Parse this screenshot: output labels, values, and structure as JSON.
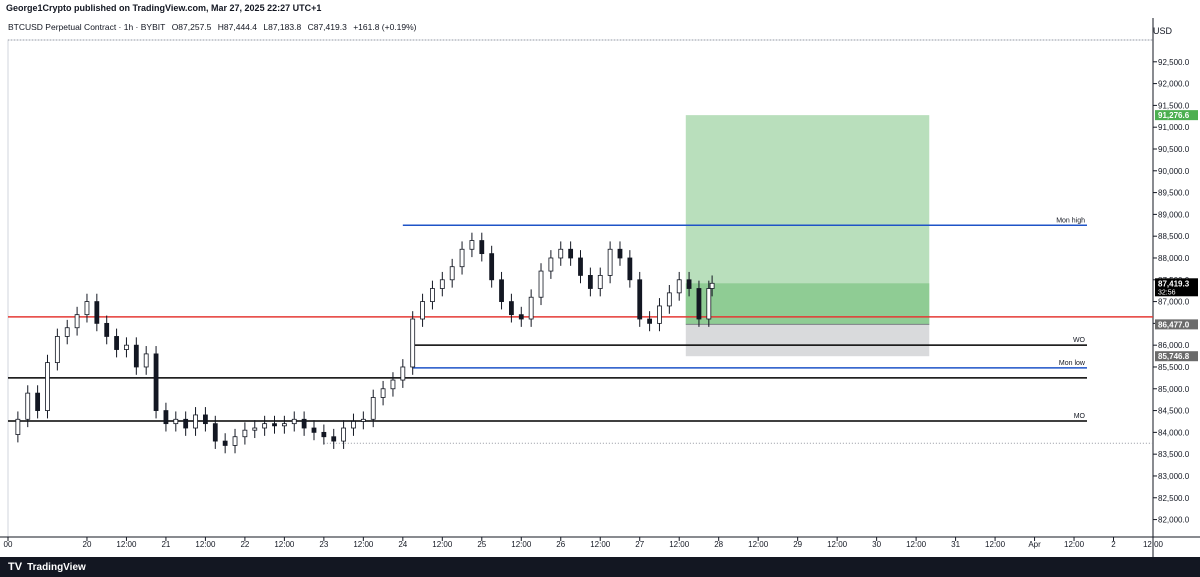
{
  "publish_note": "George1Crypto published on TradingView.com, Mar 27, 2025 22:27 UTC+1",
  "currency": "USD",
  "legend": {
    "symbol": "BTCUSD Perpetual Contract · 1h · BYBIT",
    "open": "O87,257.5",
    "high": "H87,444.4",
    "low": "L87,183.8",
    "close": "C87,419.3",
    "change": "+161.8 (+0.19%)"
  },
  "brand": "TradingView",
  "chart_data": {
    "type": "candlestick",
    "title": "",
    "xlabel": "",
    "ylabel": "",
    "ylim": [
      81600,
      93000
    ],
    "y_ticks": [
      82000,
      82500,
      83000,
      83500,
      84000,
      84500,
      85000,
      85500,
      86000,
      86500,
      87000,
      87500,
      88000,
      88500,
      89000,
      89500,
      90000,
      90500,
      91000,
      91500,
      92000,
      92500
    ],
    "y_tick_labels": [
      "82,000.0",
      "82,500.0",
      "83,000.0",
      "83,500.0",
      "84,000.0",
      "84,500.0",
      "85,000.0",
      "85,500.0",
      "86,000.0",
      "86,500.0",
      "87,000.0",
      "87,500.0",
      "88,000.0",
      "88,500.0",
      "89,000.0",
      "89,500.0",
      "90,000.0",
      "90,500.0",
      "91,000.0",
      "91,500.0",
      "92,000.0",
      "92,500.0"
    ],
    "x_start": "2025-03-19T00:00",
    "x_end": "2025-04-02T12:00",
    "x_ticks": [
      {
        "t": "2025-03-19T00:00",
        "label": "00"
      },
      {
        "t": "2025-03-20T00:00",
        "label": "20"
      },
      {
        "t": "2025-03-20T12:00",
        "label": "12:00"
      },
      {
        "t": "2025-03-21T00:00",
        "label": "21"
      },
      {
        "t": "2025-03-21T12:00",
        "label": "12:00"
      },
      {
        "t": "2025-03-22T00:00",
        "label": "22"
      },
      {
        "t": "2025-03-22T12:00",
        "label": "12:00"
      },
      {
        "t": "2025-03-23T00:00",
        "label": "23"
      },
      {
        "t": "2025-03-23T12:00",
        "label": "12:00"
      },
      {
        "t": "2025-03-24T00:00",
        "label": "24"
      },
      {
        "t": "2025-03-24T12:00",
        "label": "12:00"
      },
      {
        "t": "2025-03-25T00:00",
        "label": "25"
      },
      {
        "t": "2025-03-25T12:00",
        "label": "12:00"
      },
      {
        "t": "2025-03-26T00:00",
        "label": "26"
      },
      {
        "t": "2025-03-26T12:00",
        "label": "12:00"
      },
      {
        "t": "2025-03-27T00:00",
        "label": "27"
      },
      {
        "t": "2025-03-27T12:00",
        "label": "12:00"
      },
      {
        "t": "2025-03-28T00:00",
        "label": "28"
      },
      {
        "t": "2025-03-28T12:00",
        "label": "12:00"
      },
      {
        "t": "2025-03-29T00:00",
        "label": "29"
      },
      {
        "t": "2025-03-29T12:00",
        "label": "12:00"
      },
      {
        "t": "2025-03-30T00:00",
        "label": "30"
      },
      {
        "t": "2025-03-30T12:00",
        "label": "12:00"
      },
      {
        "t": "2025-03-31T00:00",
        "label": "31"
      },
      {
        "t": "2025-03-31T12:00",
        "label": "12:00"
      },
      {
        "t": "2025-04-01T00:00",
        "label": "Apr"
      },
      {
        "t": "2025-04-01T12:00",
        "label": "12:00"
      },
      {
        "t": "2025-04-02T00:00",
        "label": "2"
      },
      {
        "t": "2025-04-02T12:00",
        "label": "12:00"
      }
    ],
    "series": [
      {
        "t": "2025-03-19T00:00",
        "c": 83950
      },
      {
        "t": "2025-03-19T03:00",
        "c": 84300
      },
      {
        "t": "2025-03-19T06:00",
        "c": 84900
      },
      {
        "t": "2025-03-19T09:00",
        "c": 84500
      },
      {
        "t": "2025-03-19T12:00",
        "c": 85600
      },
      {
        "t": "2025-03-19T15:00",
        "c": 86200
      },
      {
        "t": "2025-03-19T18:00",
        "c": 86400
      },
      {
        "t": "2025-03-19T21:00",
        "c": 86700
      },
      {
        "t": "2025-03-20T00:00",
        "c": 87000
      },
      {
        "t": "2025-03-20T03:00",
        "c": 86500
      },
      {
        "t": "2025-03-20T06:00",
        "c": 86200
      },
      {
        "t": "2025-03-20T09:00",
        "c": 85900
      },
      {
        "t": "2025-03-20T12:00",
        "c": 86000
      },
      {
        "t": "2025-03-20T15:00",
        "c": 85500
      },
      {
        "t": "2025-03-20T18:00",
        "c": 85800
      },
      {
        "t": "2025-03-20T21:00",
        "c": 84500
      },
      {
        "t": "2025-03-21T00:00",
        "c": 84200
      },
      {
        "t": "2025-03-21T03:00",
        "c": 84300
      },
      {
        "t": "2025-03-21T06:00",
        "c": 84100
      },
      {
        "t": "2025-03-21T09:00",
        "c": 84400
      },
      {
        "t": "2025-03-21T12:00",
        "c": 84200
      },
      {
        "t": "2025-03-21T15:00",
        "c": 83800
      },
      {
        "t": "2025-03-21T18:00",
        "c": 83700
      },
      {
        "t": "2025-03-21T21:00",
        "c": 83900
      },
      {
        "t": "2025-03-22T00:00",
        "c": 84050
      },
      {
        "t": "2025-03-22T03:00",
        "c": 84100
      },
      {
        "t": "2025-03-22T06:00",
        "c": 84200
      },
      {
        "t": "2025-03-22T09:00",
        "c": 84150
      },
      {
        "t": "2025-03-22T12:00",
        "c": 84200
      },
      {
        "t": "2025-03-22T15:00",
        "c": 84300
      },
      {
        "t": "2025-03-22T18:00",
        "c": 84100
      },
      {
        "t": "2025-03-22T21:00",
        "c": 84000
      },
      {
        "t": "2025-03-23T00:00",
        "c": 83900
      },
      {
        "t": "2025-03-23T03:00",
        "c": 83800
      },
      {
        "t": "2025-03-23T06:00",
        "c": 84100
      },
      {
        "t": "2025-03-23T09:00",
        "c": 84250
      },
      {
        "t": "2025-03-23T12:00",
        "c": 84300
      },
      {
        "t": "2025-03-23T15:00",
        "c": 84800
      },
      {
        "t": "2025-03-23T18:00",
        "c": 85000
      },
      {
        "t": "2025-03-23T21:00",
        "c": 85200
      },
      {
        "t": "2025-03-24T00:00",
        "c": 85500
      },
      {
        "t": "2025-03-24T03:00",
        "c": 86600
      },
      {
        "t": "2025-03-24T06:00",
        "c": 87000
      },
      {
        "t": "2025-03-24T09:00",
        "c": 87300
      },
      {
        "t": "2025-03-24T12:00",
        "c": 87500
      },
      {
        "t": "2025-03-24T15:00",
        "c": 87800
      },
      {
        "t": "2025-03-24T18:00",
        "c": 88200
      },
      {
        "t": "2025-03-24T21:00",
        "c": 88400
      },
      {
        "t": "2025-03-25T00:00",
        "c": 88100
      },
      {
        "t": "2025-03-25T03:00",
        "c": 87500
      },
      {
        "t": "2025-03-25T06:00",
        "c": 87000
      },
      {
        "t": "2025-03-25T09:00",
        "c": 86700
      },
      {
        "t": "2025-03-25T12:00",
        "c": 86600
      },
      {
        "t": "2025-03-25T15:00",
        "c": 87100
      },
      {
        "t": "2025-03-25T18:00",
        "c": 87700
      },
      {
        "t": "2025-03-25T21:00",
        "c": 88000
      },
      {
        "t": "2025-03-26T00:00",
        "c": 88200
      },
      {
        "t": "2025-03-26T03:00",
        "c": 88000
      },
      {
        "t": "2025-03-26T06:00",
        "c": 87600
      },
      {
        "t": "2025-03-26T09:00",
        "c": 87300
      },
      {
        "t": "2025-03-26T12:00",
        "c": 87600
      },
      {
        "t": "2025-03-26T15:00",
        "c": 88200
      },
      {
        "t": "2025-03-26T18:00",
        "c": 88000
      },
      {
        "t": "2025-03-26T21:00",
        "c": 87500
      },
      {
        "t": "2025-03-27T00:00",
        "c": 86600
      },
      {
        "t": "2025-03-27T03:00",
        "c": 86500
      },
      {
        "t": "2025-03-27T06:00",
        "c": 86900
      },
      {
        "t": "2025-03-27T09:00",
        "c": 87200
      },
      {
        "t": "2025-03-27T12:00",
        "c": 87500
      },
      {
        "t": "2025-03-27T15:00",
        "c": 87300
      },
      {
        "t": "2025-03-27T18:00",
        "c": 86600
      },
      {
        "t": "2025-03-27T21:00",
        "c": 87300
      },
      {
        "t": "2025-03-27T22:00",
        "c": 87419.3
      }
    ],
    "levels": [
      {
        "name": "Mon high",
        "value": 88750,
        "color": "#1e53c7"
      },
      {
        "name": "",
        "value": 86650,
        "color": "#e53935"
      },
      {
        "name": "WO",
        "value": 86000,
        "color": "#000000"
      },
      {
        "name": "Mon low",
        "value": 85480,
        "color": "#1e53c7"
      },
      {
        "name": "",
        "value": 85250,
        "color": "#000000"
      },
      {
        "name": "MO",
        "value": 84260,
        "color": "#000000"
      }
    ],
    "position": {
      "type": "long",
      "entry": 86477.0,
      "target": 91276.6,
      "stop": 85746.8,
      "current": 87419.3,
      "start": "2025-03-27T14:00",
      "end": "2025-03-30T16:00"
    },
    "price_labels": [
      {
        "value": 91276.6,
        "text": "91,276.6",
        "color": "#4caf50"
      },
      {
        "value": 87419.3,
        "text": "87,419.3",
        "sub": "32:56",
        "color": "#000000"
      },
      {
        "value": 86477.0,
        "text": "86,477.0",
        "color": "#6b6b6b"
      },
      {
        "value": 85746.8,
        "text": "85,746.8",
        "color": "#6b6b6b"
      }
    ]
  }
}
